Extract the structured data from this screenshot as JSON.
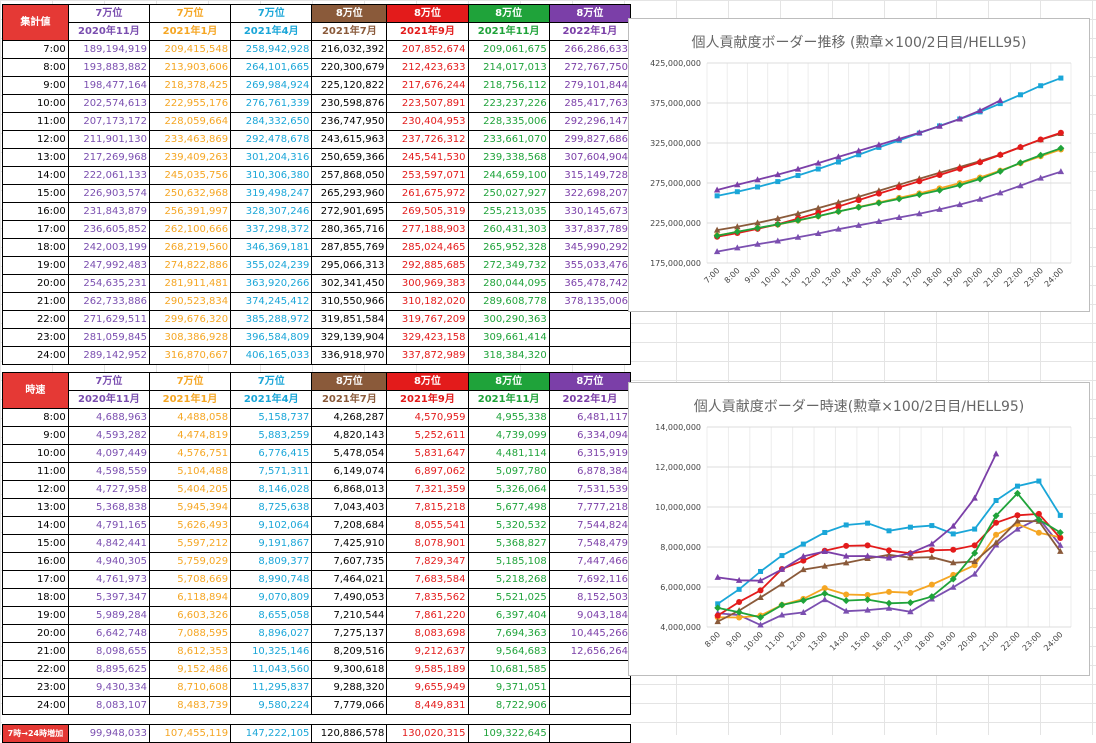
{
  "colors": {
    "c2020_11": "#7b4fb0",
    "c2021_1": "#f5a623",
    "c2021_4": "#1aa6d8",
    "c2021_7": "#8a5a3a",
    "c2021_9": "#e31b1b",
    "c2021_11": "#1fa33a",
    "c2022_1": "#7b3fa8"
  },
  "table1": {
    "title": "集計値",
    "ranks": [
      "7万位",
      "7万位",
      "7万位",
      "8万位",
      "8万位",
      "8万位",
      "8万位"
    ],
    "events": [
      "2020年11月",
      "2021年1月",
      "2021年4月",
      "2021年7月",
      "2021年9月",
      "2021年11月",
      "2022年1月"
    ],
    "rows": [
      {
        "time": "7:00",
        "vals": [
          "189,194,919",
          "209,415,548",
          "258,942,928",
          "216,032,392",
          "207,852,674",
          "209,061,675",
          "266,286,633"
        ]
      },
      {
        "time": "8:00",
        "vals": [
          "193,883,882",
          "213,903,606",
          "264,101,665",
          "220,300,679",
          "212,423,633",
          "214,017,013",
          "272,767,750"
        ]
      },
      {
        "time": "9:00",
        "vals": [
          "198,477,164",
          "218,378,425",
          "269,984,924",
          "225,120,822",
          "217,676,244",
          "218,756,112",
          "279,101,844"
        ]
      },
      {
        "time": "10:00",
        "vals": [
          "202,574,613",
          "222,955,176",
          "276,761,339",
          "230,598,876",
          "223,507,891",
          "223,237,226",
          "285,417,763"
        ]
      },
      {
        "time": "11:00",
        "vals": [
          "207,173,172",
          "228,059,664",
          "284,332,650",
          "236,747,950",
          "230,404,953",
          "228,335,006",
          "292,296,147"
        ]
      },
      {
        "time": "12:00",
        "vals": [
          "211,901,130",
          "233,463,869",
          "292,478,678",
          "243,615,963",
          "237,726,312",
          "233,661,070",
          "299,827,686"
        ]
      },
      {
        "time": "13:00",
        "vals": [
          "217,269,968",
          "239,409,263",
          "301,204,316",
          "250,659,366",
          "245,541,530",
          "239,338,568",
          "307,604,904"
        ]
      },
      {
        "time": "14:00",
        "vals": [
          "222,061,133",
          "245,035,756",
          "310,306,380",
          "257,868,050",
          "253,597,071",
          "244,659,100",
          "315,149,728"
        ]
      },
      {
        "time": "15:00",
        "vals": [
          "226,903,574",
          "250,632,968",
          "319,498,247",
          "265,293,960",
          "261,675,972",
          "250,027,927",
          "322,698,207"
        ]
      },
      {
        "time": "16:00",
        "vals": [
          "231,843,879",
          "256,391,997",
          "328,307,246",
          "272,901,695",
          "269,505,319",
          "255,213,035",
          "330,145,673"
        ]
      },
      {
        "time": "17:00",
        "vals": [
          "236,605,852",
          "262,100,666",
          "337,298,372",
          "280,365,716",
          "277,188,903",
          "260,431,303",
          "337,837,789"
        ]
      },
      {
        "time": "18:00",
        "vals": [
          "242,003,199",
          "268,219,560",
          "346,369,181",
          "287,855,769",
          "285,024,465",
          "265,952,328",
          "345,990,292"
        ]
      },
      {
        "time": "19:00",
        "vals": [
          "247,992,483",
          "274,822,886",
          "355,024,239",
          "295,066,313",
          "292,885,685",
          "272,349,732",
          "355,033,476"
        ]
      },
      {
        "time": "20:00",
        "vals": [
          "254,635,231",
          "281,911,481",
          "363,920,266",
          "302,341,450",
          "300,969,383",
          "280,044,095",
          "365,478,742"
        ]
      },
      {
        "time": "21:00",
        "vals": [
          "262,733,886",
          "290,523,834",
          "374,245,412",
          "310,550,966",
          "310,182,020",
          "289,608,778",
          "378,135,006"
        ]
      },
      {
        "time": "22:00",
        "vals": [
          "271,629,511",
          "299,676,320",
          "385,288,972",
          "319,851,584",
          "319,767,209",
          "300,290,363",
          ""
        ]
      },
      {
        "time": "23:00",
        "vals": [
          "281,059,845",
          "308,386,928",
          "396,584,809",
          "329,139,904",
          "329,423,158",
          "309,661,414",
          ""
        ]
      },
      {
        "time": "24:00",
        "vals": [
          "289,142,952",
          "316,870,667",
          "406,165,033",
          "336,918,970",
          "337,872,989",
          "318,384,320",
          ""
        ]
      }
    ]
  },
  "table2": {
    "title": "時速",
    "ranks": [
      "7万位",
      "7万位",
      "7万位",
      "8万位",
      "8万位",
      "8万位",
      "8万位"
    ],
    "events": [
      "2020年11月",
      "2021年1月",
      "2021年4月",
      "2021年7月",
      "2021年9月",
      "2021年11月",
      "2022年1月"
    ],
    "rows": [
      {
        "time": "8:00",
        "vals": [
          "4,688,963",
          "4,488,058",
          "5,158,737",
          "4,268,287",
          "4,570,959",
          "4,955,338",
          "6,481,117"
        ]
      },
      {
        "time": "9:00",
        "vals": [
          "4,593,282",
          "4,474,819",
          "5,883,259",
          "4,820,143",
          "5,252,611",
          "4,739,099",
          "6,334,094"
        ]
      },
      {
        "time": "10:00",
        "vals": [
          "4,097,449",
          "4,576,751",
          "6,776,415",
          "5,478,054",
          "5,831,647",
          "4,481,114",
          "6,315,919"
        ]
      },
      {
        "time": "11:00",
        "vals": [
          "4,598,559",
          "5,104,488",
          "7,571,311",
          "6,149,074",
          "6,897,062",
          "5,097,780",
          "6,878,384"
        ]
      },
      {
        "time": "12:00",
        "vals": [
          "4,727,958",
          "5,404,205",
          "8,146,028",
          "6,868,013",
          "7,321,359",
          "5,326,064",
          "7,531,539"
        ]
      },
      {
        "time": "13:00",
        "vals": [
          "5,368,838",
          "5,945,394",
          "8,725,638",
          "7,043,403",
          "7,815,218",
          "5,677,498",
          "7,777,218"
        ]
      },
      {
        "time": "14:00",
        "vals": [
          "4,791,165",
          "5,626,493",
          "9,102,064",
          "7,208,684",
          "8,055,541",
          "5,320,532",
          "7,544,824"
        ]
      },
      {
        "time": "15:00",
        "vals": [
          "4,842,441",
          "5,597,212",
          "9,191,867",
          "7,425,910",
          "8,078,901",
          "5,368,827",
          "7,548,479"
        ]
      },
      {
        "time": "16:00",
        "vals": [
          "4,940,305",
          "5,759,029",
          "8,809,377",
          "7,607,735",
          "7,829,347",
          "5,185,108",
          "7,447,466"
        ]
      },
      {
        "time": "17:00",
        "vals": [
          "4,761,973",
          "5,708,669",
          "8,990,748",
          "7,464,021",
          "7,683,584",
          "5,218,268",
          "7,692,116"
        ]
      },
      {
        "time": "18:00",
        "vals": [
          "5,397,347",
          "6,118,894",
          "9,070,809",
          "7,490,053",
          "7,835,562",
          "5,521,025",
          "8,152,503"
        ]
      },
      {
        "time": "19:00",
        "vals": [
          "5,989,284",
          "6,603,326",
          "8,655,058",
          "7,210,544",
          "7,861,220",
          "6,397,404",
          "9,043,184"
        ]
      },
      {
        "time": "20:00",
        "vals": [
          "6,642,748",
          "7,088,595",
          "8,896,027",
          "7,275,137",
          "8,083,698",
          "7,694,363",
          "10,445,266"
        ]
      },
      {
        "time": "21:00",
        "vals": [
          "8,098,655",
          "8,612,353",
          "10,325,146",
          "8,209,516",
          "9,212,637",
          "9,564,683",
          "12,656,264"
        ]
      },
      {
        "time": "22:00",
        "vals": [
          "8,895,625",
          "9,152,486",
          "11,043,560",
          "9,300,618",
          "9,585,189",
          "10,681,585",
          ""
        ]
      },
      {
        "time": "23:00",
        "vals": [
          "9,430,334",
          "8,710,608",
          "11,295,837",
          "9,288,320",
          "9,655,949",
          "9,371,051",
          ""
        ]
      },
      {
        "time": "24:00",
        "vals": [
          "8,083,107",
          "8,483,739",
          "9,580,224",
          "7,779,066",
          "8,449,831",
          "8,722,906",
          ""
        ]
      }
    ],
    "total_label": "7時→24時増加",
    "totals": [
      "99,948,033",
      "107,455,119",
      "147,222,105",
      "120,886,578",
      "130,020,315",
      "109,322,645",
      ""
    ]
  },
  "chart_data": [
    {
      "type": "line",
      "title": "個人貢献度ボーダー推移 (勲章×100/2日目/HELL95)",
      "x": [
        "7:00",
        "8:00",
        "9:00",
        "10:00",
        "11:00",
        "12:00",
        "13:00",
        "14:00",
        "15:00",
        "16:00",
        "17:00",
        "18:00",
        "19:00",
        "20:00",
        "21:00",
        "22:00",
        "23:00",
        "24:00"
      ],
      "ylim": [
        175000000,
        425000000
      ],
      "yticks": [
        175000000,
        225000000,
        275000000,
        325000000,
        375000000,
        425000000
      ],
      "ytick_labels": [
        "175,000,000",
        "225,000,000",
        "275,000,000",
        "325,000,000",
        "375,000,000",
        "425,000,000"
      ],
      "grid": true,
      "series": [
        {
          "values": [
            189194919,
            193883882,
            198477164,
            202574613,
            207173172,
            211901130,
            217269968,
            222061133,
            226903574,
            231843879,
            236605852,
            242003199,
            247992483,
            254635231,
            262733886,
            271629511,
            281059845,
            289142952
          ],
          "color": "#7b4fb0",
          "marker": "triangle"
        },
        {
          "values": [
            209415548,
            213903606,
            218378425,
            222955176,
            228059664,
            233463869,
            239409263,
            245035756,
            250632968,
            256391997,
            262100666,
            268219560,
            274822886,
            281911481,
            290523834,
            299676320,
            308386928,
            316870667
          ],
          "color": "#f5a623",
          "marker": "circle"
        },
        {
          "values": [
            258942928,
            264101665,
            269984924,
            276761339,
            284332650,
            292478678,
            301204316,
            310306380,
            319498247,
            328307246,
            337298372,
            346369181,
            355024239,
            363920266,
            374245412,
            385288972,
            396584809,
            406165033
          ],
          "color": "#1aa6d8",
          "marker": "square"
        },
        {
          "values": [
            216032392,
            220300679,
            225120822,
            230598876,
            236747950,
            243615963,
            250659366,
            257868050,
            265293960,
            272901695,
            280365716,
            287855769,
            295066313,
            302341450,
            310550966,
            319851584,
            329139904,
            336918970
          ],
          "color": "#8a5a3a",
          "marker": "triangle"
        },
        {
          "values": [
            207852674,
            212423633,
            217676244,
            223507891,
            230404953,
            237726312,
            245541530,
            253597071,
            261675972,
            269505319,
            277188903,
            285024465,
            292885685,
            300969383,
            310182020,
            319767209,
            329423158,
            337872989
          ],
          "color": "#e31b1b",
          "marker": "circle"
        },
        {
          "values": [
            209061675,
            214017013,
            218756112,
            223237226,
            228335006,
            233661070,
            239338568,
            244659100,
            250027927,
            255213035,
            260431303,
            265952328,
            272349732,
            280044095,
            289608778,
            300290363,
            309661414,
            318384320
          ],
          "color": "#1fa33a",
          "marker": "diamond"
        },
        {
          "values": [
            266286633,
            272767750,
            279101844,
            285417763,
            292296147,
            299827686,
            307604904,
            315149728,
            322698207,
            330145673,
            337837789,
            345990292,
            355033476,
            365478742,
            378135006,
            null,
            null,
            null
          ],
          "color": "#7b3fa8",
          "marker": "triangle"
        }
      ]
    },
    {
      "type": "line",
      "title": "個人貢献度ボーダー時速(勲章×100/2日目/HELL95)",
      "x": [
        "8:00",
        "9:00",
        "10:00",
        "11:00",
        "12:00",
        "13:00",
        "14:00",
        "15:00",
        "16:00",
        "17:00",
        "18:00",
        "19:00",
        "20:00",
        "21:00",
        "22:00",
        "23:00",
        "24:00"
      ],
      "ylim": [
        4000000,
        14000000
      ],
      "yticks": [
        4000000,
        6000000,
        8000000,
        10000000,
        12000000,
        14000000
      ],
      "ytick_labels": [
        "4,000,000",
        "6,000,000",
        "8,000,000",
        "10,000,000",
        "12,000,000",
        "14,000,000"
      ],
      "grid": true,
      "series": [
        {
          "values": [
            4688963,
            4593282,
            4097449,
            4598559,
            4727958,
            5368838,
            4791165,
            4842441,
            4940305,
            4761973,
            5397347,
            5989284,
            6642748,
            8098655,
            8895625,
            9430334,
            8083107
          ],
          "color": "#7b4fb0",
          "marker": "triangle"
        },
        {
          "values": [
            4488058,
            4474819,
            4576751,
            5104488,
            5404205,
            5945394,
            5626493,
            5597212,
            5759029,
            5708669,
            6118894,
            6603326,
            7088595,
            8612353,
            9152486,
            8710608,
            8483739
          ],
          "color": "#f5a623",
          "marker": "circle"
        },
        {
          "values": [
            5158737,
            5883259,
            6776415,
            7571311,
            8146028,
            8725638,
            9102064,
            9191867,
            8809377,
            8990748,
            9070809,
            8655058,
            8896027,
            10325146,
            11043560,
            11295837,
            9580224
          ],
          "color": "#1aa6d8",
          "marker": "square"
        },
        {
          "values": [
            4268287,
            4820143,
            5478054,
            6149074,
            6868013,
            7043403,
            7208684,
            7425910,
            7607735,
            7464021,
            7490053,
            7210544,
            7275137,
            8209516,
            9300618,
            9288320,
            7779066
          ],
          "color": "#8a5a3a",
          "marker": "triangle"
        },
        {
          "values": [
            4570959,
            5252611,
            5831647,
            6897062,
            7321359,
            7815218,
            8055541,
            8078901,
            7829347,
            7683584,
            7835562,
            7861220,
            8083698,
            9212637,
            9585189,
            9655949,
            8449831
          ],
          "color": "#e31b1b",
          "marker": "circle"
        },
        {
          "values": [
            4955338,
            4739099,
            4481114,
            5097780,
            5326064,
            5677498,
            5320532,
            5368827,
            5185108,
            5218268,
            5521025,
            6397404,
            7694363,
            9564683,
            10681585,
            9371051,
            8722906
          ],
          "color": "#1fa33a",
          "marker": "diamond"
        },
        {
          "values": [
            6481117,
            6334094,
            6315919,
            6878384,
            7531539,
            7777218,
            7544824,
            7548479,
            7447466,
            7692116,
            8152503,
            9043184,
            10445266,
            12656264,
            null,
            null,
            null
          ],
          "color": "#7b3fa8",
          "marker": "triangle"
        }
      ]
    }
  ]
}
